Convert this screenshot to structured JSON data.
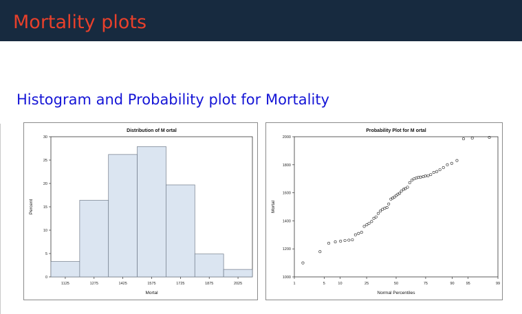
{
  "slide": {
    "title": "Mortality plots",
    "subtitle": "Histogram and Probability plot for Mortality"
  },
  "colors": {
    "header_bg": "#172a3f",
    "title_text": "#e8402b",
    "subtitle_text": "#1515d6",
    "bar_fill": "#dbe5f1",
    "bar_stroke": "#6f7a89"
  },
  "chart_data": [
    {
      "type": "bar",
      "title": "Distribution of M ortal",
      "xlabel": "Mortal",
      "ylabel": "Percent",
      "categories": [
        "1125",
        "1275",
        "1425",
        "1575",
        "1725",
        "1875",
        "2025"
      ],
      "values": [
        3.3,
        16.4,
        26.2,
        27.9,
        19.7,
        4.9,
        1.6
      ],
      "ylim": [
        0,
        30
      ],
      "yticks": [
        "0",
        "5",
        "10",
        "15",
        "20",
        "25",
        "30"
      ]
    },
    {
      "type": "scatter",
      "title": "Probability Plot for M ortal",
      "xlabel": "Normal Percentiles",
      "ylabel": "Mortal",
      "xticks": [
        "1",
        "5",
        "10",
        "25",
        "50",
        "75",
        "90",
        "95",
        "99"
      ],
      "xtick_values": [
        1,
        5,
        10,
        25,
        50,
        75,
        90,
        95,
        99
      ],
      "yticks": [
        "1000",
        "1200",
        "1400",
        "1600",
        "1800",
        "2000"
      ],
      "ylim": [
        1000,
        2000
      ],
      "z_range": [
        -2.326,
        2.326
      ],
      "z": [
        -2.13,
        -1.74,
        -1.54,
        -1.39,
        -1.27,
        -1.17,
        -1.08,
        -1.0,
        -0.93,
        -0.86,
        -0.79,
        -0.73,
        -0.67,
        -0.62,
        -0.56,
        -0.51,
        -0.46,
        -0.41,
        -0.36,
        -0.31,
        -0.26,
        -0.21,
        -0.17,
        -0.12,
        -0.08,
        -0.04,
        0.0,
        0.04,
        0.08,
        0.12,
        0.17,
        0.21,
        0.26,
        0.31,
        0.36,
        0.41,
        0.46,
        0.51,
        0.56,
        0.62,
        0.67,
        0.73,
        0.79,
        0.86,
        0.93,
        1.0,
        1.08,
        1.17,
        1.27,
        1.39,
        1.54,
        1.74,
        2.13
      ],
      "y": [
        1100,
        1180,
        1240,
        1250,
        1255,
        1260,
        1262,
        1265,
        1300,
        1310,
        1318,
        1360,
        1372,
        1382,
        1395,
        1418,
        1428,
        1452,
        1470,
        1482,
        1490,
        1495,
        1520,
        1555,
        1562,
        1570,
        1580,
        1590,
        1596,
        1612,
        1625,
        1630,
        1640,
        1672,
        1690,
        1700,
        1705,
        1710,
        1712,
        1715,
        1720,
        1722,
        1730,
        1745,
        1752,
        1765,
        1780,
        1800,
        1810,
        1830,
        1985,
        1990,
        1995
      ]
    }
  ]
}
